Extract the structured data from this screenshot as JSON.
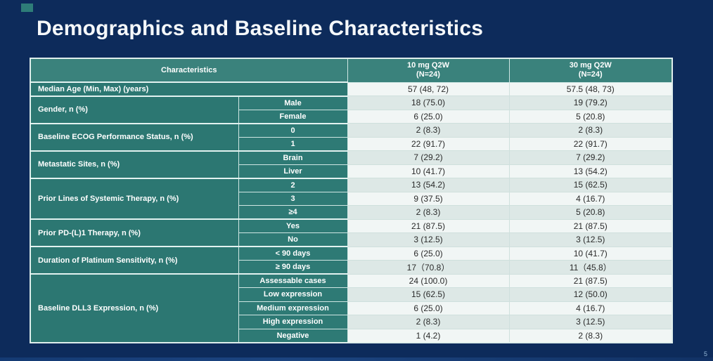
{
  "slide": {
    "title": "Demographics and Baseline Characteristics",
    "page_number": "5"
  },
  "table": {
    "header": {
      "characteristics": "Characteristics",
      "columns": [
        {
          "line1": "10 mg Q2W",
          "line2": "(N=24)"
        },
        {
          "line1": "30 mg Q2W",
          "line2": "(N=24)"
        }
      ]
    },
    "groups": [
      {
        "label": "Median Age (Min, Max) (years)",
        "rows": [
          {
            "sub": "",
            "v1": "57 (48, 72)",
            "v2": "57.5 (48, 73)"
          }
        ]
      },
      {
        "label": "Gender, n (%)",
        "rows": [
          {
            "sub": "Male",
            "v1": "18 (75.0)",
            "v2": "19 (79.2)"
          },
          {
            "sub": "Female",
            "v1": "6 (25.0)",
            "v2": "5 (20.8)"
          }
        ]
      },
      {
        "label": "Baseline ECOG Performance Status, n (%)",
        "rows": [
          {
            "sub": "0",
            "v1": "2 (8.3)",
            "v2": "2 (8.3)"
          },
          {
            "sub": "1",
            "v1": "22 (91.7)",
            "v2": "22 (91.7)"
          }
        ]
      },
      {
        "label": "Metastatic Sites, n (%)",
        "rows": [
          {
            "sub": "Brain",
            "v1": "7 (29.2)",
            "v2": "7 (29.2)"
          },
          {
            "sub": "Liver",
            "v1": "10 (41.7)",
            "v2": "13 (54.2)"
          }
        ]
      },
      {
        "label": "Prior Lines of Systemic Therapy, n (%)",
        "rows": [
          {
            "sub": "2",
            "v1": "13 (54.2)",
            "v2": "15 (62.5)"
          },
          {
            "sub": "3",
            "v1": "9 (37.5)",
            "v2": "4 (16.7)"
          },
          {
            "sub": "≥4",
            "v1": "2 (8.3)",
            "v2": "5 (20.8)"
          }
        ]
      },
      {
        "label": "Prior PD-(L)1 Therapy, n (%)",
        "rows": [
          {
            "sub": "Yes",
            "v1": "21 (87.5)",
            "v2": "21 (87.5)"
          },
          {
            "sub": "No",
            "v1": "3 (12.5)",
            "v2": "3 (12.5)"
          }
        ]
      },
      {
        "label": "Duration of Platinum Sensitivity, n (%)",
        "rows": [
          {
            "sub": "< 90 days",
            "v1": "6 (25.0)",
            "v2": "10 (41.7)"
          },
          {
            "sub": "≥ 90 days",
            "v1": "17（70.8）",
            "v2": "11（45.8）"
          }
        ]
      },
      {
        "label": "Baseline DLL3 Expression, n (%)",
        "rows": [
          {
            "sub": "Assessable cases",
            "v1": "24 (100.0)",
            "v2": "21 (87.5)"
          },
          {
            "sub": "Low expression",
            "v1": "15 (62.5)",
            "v2": "12 (50.0)"
          },
          {
            "sub": "Medium expression",
            "v1": "6 (25.0)",
            "v2": "4 (16.7)"
          },
          {
            "sub": "High expression",
            "v1": "2 (8.3)",
            "v2": "3 (12.5)"
          },
          {
            "sub": "Negative",
            "v1": "1 (4.2)",
            "v2": "2 (8.3)"
          }
        ]
      }
    ]
  },
  "colors": {
    "background": "#0d2b5b",
    "header_teal": "#3a827c",
    "label_teal": "#2c7772",
    "row_light": "#f1f6f5",
    "row_alt": "#dde8e6",
    "accent": "#2e7d78"
  }
}
